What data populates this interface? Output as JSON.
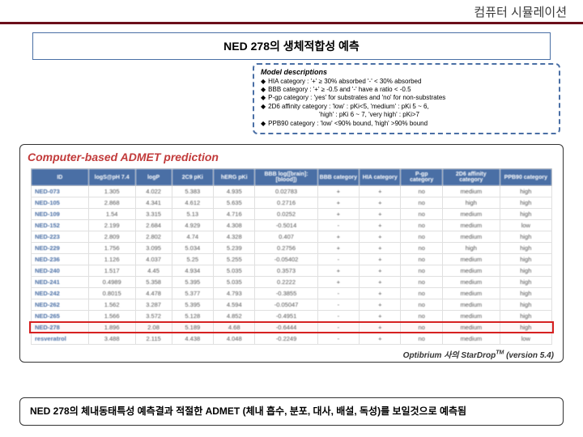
{
  "header": "컴퓨터 시뮬레이션",
  "title": "NED 278의 생체적합성 예측",
  "model_desc": {
    "title": "Model descriptions",
    "items": [
      "HIA category : '+' ≥ 30% absorbed  '-' < 30% absorbed",
      "BBB category : '+' ≥ -0.5 and '-' have a ratio < -0.5",
      "P-gp category : 'yes' for substrates and 'no' for non-substrates",
      "2D6 affinity category : 'low' : pKi<5, 'medium' : pKi 5 ~ 6,",
      "PPB90 category : 'low' <90% bound, 'high' >90% bound"
    ],
    "sub": "'high' : pKi 6 ~ 7, 'very high' : pKi>7"
  },
  "chart": {
    "title": "Computer-based ADMET prediction",
    "credit": "Optibrium 사의 StarDrop",
    "credit_sup": "TM",
    "credit_tail": " (version 5.4)",
    "columns": [
      "ID",
      "logS@pH 7.4",
      "logP",
      "2C9 pKi",
      "hERG pKi",
      "BBB log([brain]:[blood])",
      "BBB category",
      "HIA category",
      "P-gp category",
      "2D6 affinity category",
      "PPB90 category"
    ],
    "col_widths": [
      "11%",
      "9%",
      "7%",
      "8%",
      "8%",
      "12%",
      "8%",
      "8%",
      "8%",
      "11%",
      "10%"
    ],
    "rows": [
      [
        "NED-073",
        "1.305",
        "4.022",
        "5.383",
        "4.935",
        "0.02783",
        "+",
        "+",
        "no",
        "medium",
        "high"
      ],
      [
        "NED-105",
        "2.868",
        "4.341",
        "4.612",
        "5.635",
        "0.2716",
        "+",
        "+",
        "no",
        "high",
        "high"
      ],
      [
        "NED-109",
        "1.54",
        "3.315",
        "5.13",
        "4.716",
        "0.0252",
        "+",
        "+",
        "no",
        "medium",
        "high"
      ],
      [
        "NED-152",
        "2.199",
        "2.684",
        "4.929",
        "4.308",
        "-0.5014",
        "-",
        "+",
        "no",
        "medium",
        "low"
      ],
      [
        "NED-223",
        "2.809",
        "2.802",
        "4.74",
        "4.328",
        "0.407",
        "+",
        "+",
        "no",
        "medium",
        "high"
      ],
      [
        "NED-229",
        "1.756",
        "3.095",
        "5.034",
        "5.239",
        "0.2756",
        "+",
        "+",
        "no",
        "high",
        "high"
      ],
      [
        "NED-236",
        "1.126",
        "4.037",
        "5.25",
        "5.255",
        "-0.05402",
        "-",
        "+",
        "no",
        "medium",
        "high"
      ],
      [
        "NED-240",
        "1.517",
        "4.45",
        "4.934",
        "5.035",
        "0.3573",
        "+",
        "+",
        "no",
        "medium",
        "high"
      ],
      [
        "NED-241",
        "0.4989",
        "5.358",
        "5.395",
        "5.035",
        "0.2222",
        "+",
        "+",
        "no",
        "medium",
        "high"
      ],
      [
        "NED-242",
        "0.8015",
        "4.478",
        "5.377",
        "4.793",
        "-0.3855",
        "-",
        "+",
        "no",
        "medium",
        "high"
      ],
      [
        "NED-262",
        "1.562",
        "3.287",
        "5.395",
        "4.594",
        "-0.05047",
        "-",
        "+",
        "no",
        "medium",
        "high"
      ],
      [
        "NED-265",
        "1.566",
        "3.572",
        "5.128",
        "4.852",
        "-0.4951",
        "-",
        "+",
        "no",
        "medium",
        "high"
      ],
      [
        "NED-278",
        "1.896",
        "2.08",
        "5.189",
        "4.68",
        "-0.6444",
        "-",
        "+",
        "no",
        "medium",
        "high"
      ],
      [
        "resveratrol",
        "3.488",
        "2.115",
        "4.438",
        "4.048",
        "-0.2249",
        "-",
        "+",
        "no",
        "medium",
        "low"
      ]
    ],
    "highlight_row": 12
  },
  "footer": "NED 278의 체내동태특성 예측결과 적절한 ADMET (체내 흡수, 분포, 대사, 배설, 독성)를 보일것으로 예측됨"
}
